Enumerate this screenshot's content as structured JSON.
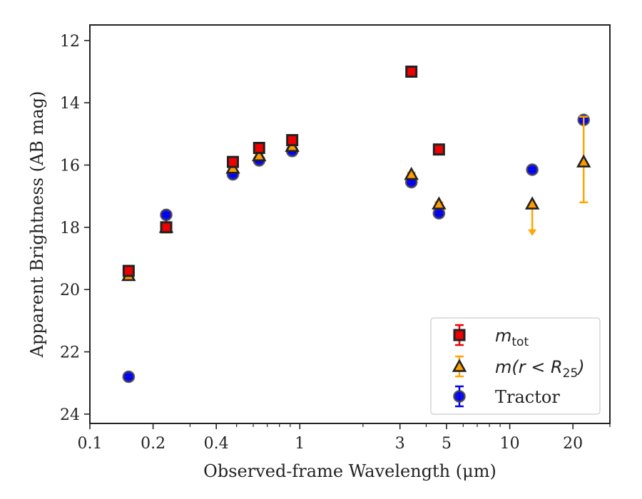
{
  "chart_data": {
    "type": "scatter",
    "xlabel": "Observed-frame Wavelength (μm)",
    "ylabel": "Apparent Brightness (AB mag)",
    "xscale": "log",
    "xlim": [
      0.1,
      30
    ],
    "ylim": [
      24.3,
      11.5
    ],
    "y_inverted": true,
    "x_ticks": [
      0.1,
      0.2,
      0.4,
      1,
      3,
      5,
      10,
      20
    ],
    "x_tick_labels": [
      "0.1",
      "0.2",
      "0.4",
      "1",
      "3",
      "5",
      "10",
      "20"
    ],
    "y_ticks": [
      12,
      14,
      16,
      18,
      20,
      22,
      24
    ],
    "y_tick_labels": [
      "12",
      "14",
      "16",
      "18",
      "20",
      "22",
      "24"
    ],
    "grid": false,
    "legend_position": "lower-right",
    "series": [
      {
        "legend_label": "m_tot",
        "legend_main": "m",
        "legend_sub": "tot",
        "marker": "square",
        "color": "#ee0000",
        "edge_color": "#222222",
        "error_color": "#ee0000",
        "points": [
          {
            "x": 0.153,
            "y": 19.4,
            "yerr_low": 0.1,
            "yerr_high": 0.1
          },
          {
            "x": 0.231,
            "y": 18.0,
            "yerr_low": 0.05,
            "yerr_high": 0.05
          },
          {
            "x": 0.48,
            "y": 15.9,
            "yerr_low": 0.05,
            "yerr_high": 0.05
          },
          {
            "x": 0.64,
            "y": 15.45,
            "yerr_low": 0.05,
            "yerr_high": 0.05
          },
          {
            "x": 0.92,
            "y": 15.2,
            "yerr_low": 0.05,
            "yerr_high": 0.05
          },
          {
            "x": 3.4,
            "y": 13.0,
            "yerr_low": 0.05,
            "yerr_high": 0.05
          },
          {
            "x": 4.6,
            "y": 15.5,
            "yerr_low": 0.05,
            "yerr_high": 0.05
          }
        ]
      },
      {
        "legend_label": "m(r < R_25)",
        "legend_main": "m(r < R",
        "legend_sub": "25",
        "legend_tail": ")",
        "marker": "triangle",
        "color": "#ff9d00",
        "edge_color": "#222222",
        "error_color": "#ffa500",
        "points": [
          {
            "x": 0.153,
            "y": 19.55,
            "yerr_low": 0.05,
            "yerr_high": 0.05
          },
          {
            "x": 0.231,
            "y": 18.0,
            "yerr_low": 0.05,
            "yerr_high": 0.05
          },
          {
            "x": 0.48,
            "y": 16.1,
            "yerr_low": 0.05,
            "yerr_high": 0.05
          },
          {
            "x": 0.64,
            "y": 15.7,
            "yerr_low": 0.05,
            "yerr_high": 0.05
          },
          {
            "x": 0.92,
            "y": 15.4,
            "yerr_low": 0.05,
            "yerr_high": 0.05
          },
          {
            "x": 3.4,
            "y": 16.3,
            "yerr_low": 0.05,
            "yerr_high": 0.05
          },
          {
            "x": 4.6,
            "y": 17.25,
            "yerr_low": 0.05,
            "yerr_high": 0.05
          },
          {
            "x": 12.8,
            "y": 17.25,
            "upper_limit": true,
            "limit_to": 18.25
          },
          {
            "x": 22.5,
            "y": 15.9,
            "yerr_low": 1.3,
            "yerr_high": 1.45
          }
        ]
      },
      {
        "legend_label": "Tractor",
        "legend_main": "Tractor",
        "marker": "circle",
        "color": "#0000ee",
        "edge_color": "#444444",
        "error_color": "#0000ee",
        "points": [
          {
            "x": 0.153,
            "y": 22.8,
            "yerr_low": 0.05,
            "yerr_high": 0.05
          },
          {
            "x": 0.231,
            "y": 17.6,
            "yerr_low": 0.05,
            "yerr_high": 0.05
          },
          {
            "x": 0.48,
            "y": 16.3,
            "yerr_low": 0.05,
            "yerr_high": 0.05
          },
          {
            "x": 0.64,
            "y": 15.85,
            "yerr_low": 0.05,
            "yerr_high": 0.05
          },
          {
            "x": 0.92,
            "y": 15.55,
            "yerr_low": 0.05,
            "yerr_high": 0.05
          },
          {
            "x": 3.4,
            "y": 16.55,
            "yerr_low": 0.05,
            "yerr_high": 0.05
          },
          {
            "x": 4.6,
            "y": 17.55,
            "yerr_low": 0.05,
            "yerr_high": 0.05
          },
          {
            "x": 12.8,
            "y": 16.15,
            "yerr_low": 0.05,
            "yerr_high": 0.05
          },
          {
            "x": 22.5,
            "y": 14.55,
            "yerr_low": 0.05,
            "yerr_high": 0.05
          }
        ]
      }
    ]
  }
}
